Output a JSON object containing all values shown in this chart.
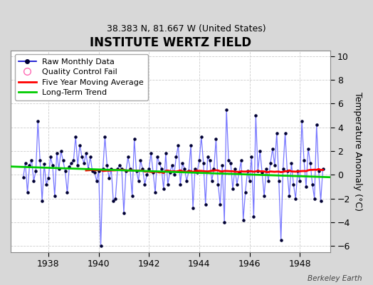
{
  "title": "INSTITUTE WERTZ FIELD",
  "subtitle": "38.383 N, 81.667 W (United States)",
  "ylabel": "Temperature Anomaly (°C)",
  "watermark": "Berkeley Earth",
  "xlim": [
    1936.5,
    1949.2
  ],
  "ylim": [
    -6.5,
    10.5
  ],
  "yticks": [
    -6,
    -4,
    -2,
    0,
    2,
    4,
    6,
    8,
    10
  ],
  "xticks": [
    1938,
    1940,
    1942,
    1944,
    1946,
    1948
  ],
  "fig_bg_color": "#d8d8d8",
  "plot_bg_color": "#ffffff",
  "raw_line_color": "#7777ff",
  "raw_marker_color": "#000033",
  "moving_avg_color": "#ff0000",
  "trend_color": "#00cc00",
  "grid_color": "#cccccc",
  "raw_data_times": [
    1937.0,
    1937.083,
    1937.167,
    1937.25,
    1937.333,
    1937.417,
    1937.5,
    1937.583,
    1937.667,
    1937.75,
    1937.833,
    1937.917,
    1938.0,
    1938.083,
    1938.167,
    1938.25,
    1938.333,
    1938.417,
    1938.5,
    1938.583,
    1938.667,
    1938.75,
    1938.833,
    1938.917,
    1939.0,
    1939.083,
    1939.167,
    1939.25,
    1939.333,
    1939.417,
    1939.5,
    1939.583,
    1939.667,
    1939.75,
    1939.833,
    1939.917,
    1940.0,
    1940.083,
    1940.167,
    1940.25,
    1940.333,
    1940.417,
    1940.5,
    1940.583,
    1940.667,
    1940.75,
    1940.833,
    1940.917,
    1941.0,
    1941.083,
    1941.167,
    1941.25,
    1941.333,
    1941.417,
    1941.5,
    1941.583,
    1941.667,
    1941.75,
    1941.833,
    1941.917,
    1942.0,
    1942.083,
    1942.167,
    1942.25,
    1942.333,
    1942.417,
    1942.5,
    1942.583,
    1942.667,
    1942.75,
    1942.833,
    1942.917,
    1943.0,
    1943.083,
    1943.167,
    1943.25,
    1943.333,
    1943.417,
    1943.5,
    1943.583,
    1943.667,
    1943.75,
    1943.833,
    1943.917,
    1944.0,
    1944.083,
    1944.167,
    1944.25,
    1944.333,
    1944.417,
    1944.5,
    1944.583,
    1944.667,
    1944.75,
    1944.833,
    1944.917,
    1945.0,
    1945.083,
    1945.167,
    1945.25,
    1945.333,
    1945.417,
    1945.5,
    1945.583,
    1945.667,
    1945.75,
    1945.833,
    1945.917,
    1946.0,
    1946.083,
    1946.167,
    1946.25,
    1946.333,
    1946.417,
    1946.5,
    1946.583,
    1946.667,
    1946.75,
    1946.833,
    1946.917,
    1947.0,
    1947.083,
    1947.167,
    1947.25,
    1947.333,
    1947.417,
    1947.5,
    1947.583,
    1947.667,
    1947.75,
    1947.833,
    1947.917,
    1948.0,
    1948.083,
    1948.167,
    1948.25,
    1948.333,
    1948.417,
    1948.5,
    1948.583,
    1948.667,
    1948.75,
    1948.833,
    1948.917
  ],
  "raw_data_values": [
    -0.2,
    1.0,
    -1.5,
    0.8,
    1.2,
    -0.5,
    0.3,
    4.5,
    1.2,
    -2.2,
    0.9,
    -0.8,
    -0.3,
    1.5,
    0.8,
    -1.8,
    1.8,
    0.5,
    2.0,
    1.2,
    0.3,
    -1.5,
    0.7,
    1.0,
    1.2,
    3.2,
    0.8,
    2.5,
    1.5,
    1.0,
    1.8,
    0.5,
    1.5,
    0.3,
    0.2,
    -0.5,
    0.3,
    -6.0,
    0.5,
    3.2,
    0.8,
    -0.3,
    0.5,
    -2.2,
    -2.0,
    0.5,
    0.8,
    0.5,
    -3.2,
    0.3,
    1.5,
    0.5,
    -1.8,
    3.0,
    0.3,
    -0.5,
    1.2,
    0.5,
    -0.8,
    0.0,
    0.5,
    1.8,
    0.2,
    -1.5,
    1.5,
    1.0,
    0.5,
    -1.2,
    1.8,
    -0.8,
    0.2,
    0.8,
    0.0,
    1.5,
    2.5,
    -0.8,
    1.0,
    0.5,
    -0.5,
    0.3,
    2.5,
    -2.8,
    0.5,
    0.2,
    1.2,
    3.2,
    1.0,
    -2.5,
    1.5,
    1.2,
    -0.5,
    0.5,
    3.0,
    -0.8,
    -2.5,
    0.8,
    -4.0,
    5.5,
    1.2,
    1.0,
    -1.2,
    0.5,
    -0.8,
    0.2,
    1.2,
    -3.8,
    -1.5,
    0.3,
    -0.5,
    1.5,
    -3.5,
    5.0,
    0.3,
    2.0,
    0.2,
    -1.8,
    0.5,
    -0.5,
    1.0,
    2.2,
    0.8,
    3.5,
    -0.5,
    -5.5,
    0.5,
    3.5,
    0.3,
    -1.8,
    1.0,
    -0.8,
    -2.0,
    0.3,
    -0.5,
    4.5,
    1.2,
    -1.0,
    2.2,
    1.0,
    -0.8,
    -2.0,
    4.2,
    0.3,
    -2.2,
    0.5
  ],
  "trend_x": [
    1936.5,
    1949.2
  ],
  "trend_y": [
    0.7,
    -0.2
  ]
}
